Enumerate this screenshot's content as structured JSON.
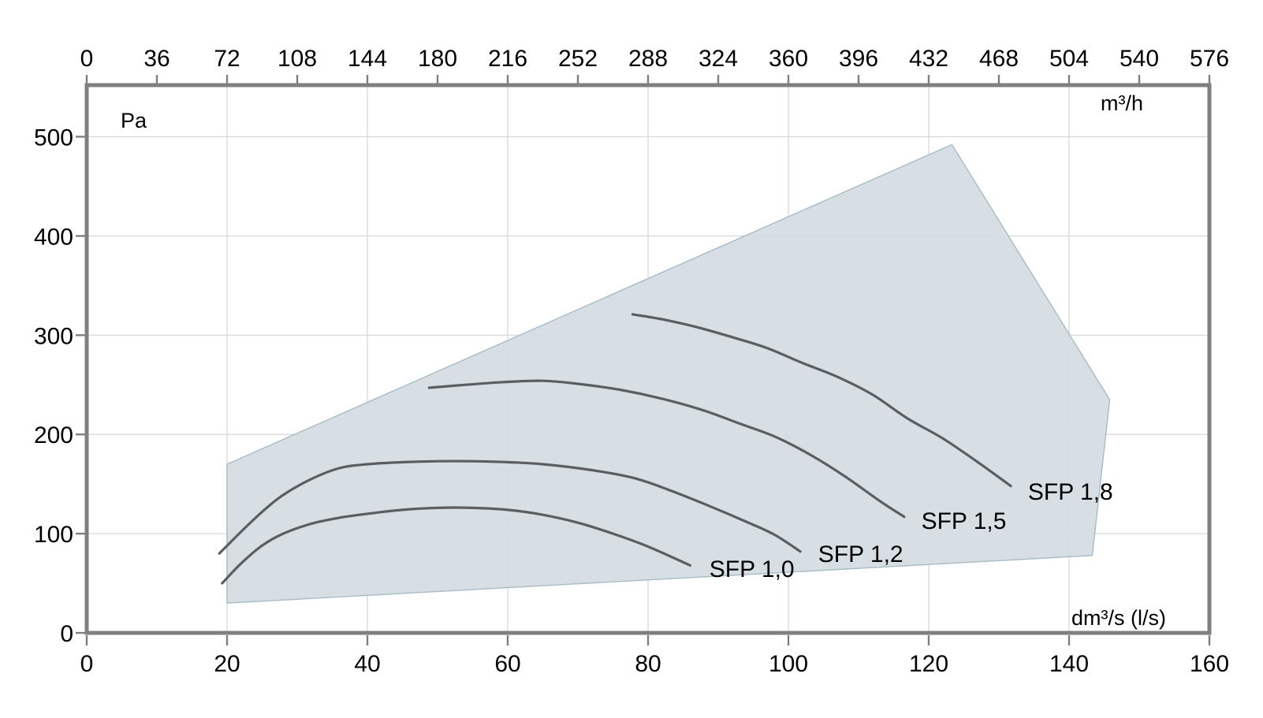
{
  "chart_data": {
    "type": "line",
    "x_axis_top": {
      "unit_label": "m³/h",
      "ticks": [
        0,
        36,
        72,
        108,
        144,
        180,
        216,
        252,
        288,
        324,
        360,
        396,
        432,
        468,
        504,
        540,
        576
      ],
      "range": [
        0,
        576
      ]
    },
    "x_axis_bottom": {
      "unit_label": "dm³/s (l/s)",
      "ticks": [
        0,
        20,
        40,
        60,
        80,
        100,
        120,
        140,
        160
      ],
      "range": [
        0,
        160
      ]
    },
    "y_axis": {
      "unit_label": "Pa",
      "ticks": [
        0,
        100,
        200,
        300,
        400,
        500
      ],
      "range": [
        0,
        552
      ]
    },
    "grid": {
      "show": true,
      "x_every_ls": 20,
      "y_every_pa": 100
    },
    "envelope": {
      "name": "operating-area",
      "points_ls_pa": [
        [
          20,
          170
        ],
        [
          123.3,
          492
        ],
        [
          145.8,
          235
        ],
        [
          143.3,
          78
        ],
        [
          20,
          30
        ]
      ]
    },
    "series": [
      {
        "label": "SFP 1,0",
        "label_pos_ls_pa": [
          94.8,
          56.4
        ],
        "points_ls_pa": [
          [
            19.3,
            50
          ],
          [
            22,
            70
          ],
          [
            25,
            88
          ],
          [
            28,
            100
          ],
          [
            32,
            110
          ],
          [
            36,
            116
          ],
          [
            40,
            120
          ],
          [
            45,
            124
          ],
          [
            50,
            126
          ],
          [
            55,
            126
          ],
          [
            60,
            124
          ],
          [
            65,
            119
          ],
          [
            70,
            111
          ],
          [
            75,
            100
          ],
          [
            80,
            87
          ],
          [
            86,
            68
          ]
        ]
      },
      {
        "label": "SFP 1,2",
        "label_pos_ls_pa": [
          110.3,
          71.5
        ],
        "points_ls_pa": [
          [
            18.9,
            80
          ],
          [
            22,
            102
          ],
          [
            25,
            122
          ],
          [
            28,
            139
          ],
          [
            32,
            155
          ],
          [
            36,
            166
          ],
          [
            40,
            170
          ],
          [
            45,
            172
          ],
          [
            50,
            173
          ],
          [
            55,
            173
          ],
          [
            60,
            172
          ],
          [
            65,
            170
          ],
          [
            72,
            164
          ],
          [
            78,
            156
          ],
          [
            83,
            144
          ],
          [
            88,
            130
          ],
          [
            94,
            112
          ],
          [
            98,
            99
          ],
          [
            101.7,
            82
          ]
        ]
      },
      {
        "label": "SFP 1,5",
        "label_pos_ls_pa": [
          125.0,
          104.8
        ],
        "points_ls_pa": [
          [
            48.8,
            247
          ],
          [
            54,
            250
          ],
          [
            60,
            253
          ],
          [
            65,
            254
          ],
          [
            70,
            251
          ],
          [
            76,
            245
          ],
          [
            82,
            236
          ],
          [
            88,
            224
          ],
          [
            93,
            211
          ],
          [
            98,
            198
          ],
          [
            103,
            180
          ],
          [
            108,
            158
          ],
          [
            113,
            133
          ],
          [
            116.5,
            117
          ]
        ]
      },
      {
        "label": "SFP 1,8",
        "label_pos_ls_pa": [
          140.2,
          134.2
        ],
        "points_ls_pa": [
          [
            77.8,
            321
          ],
          [
            82,
            316
          ],
          [
            87,
            308
          ],
          [
            92,
            298
          ],
          [
            97,
            287
          ],
          [
            102,
            272
          ],
          [
            107,
            258
          ],
          [
            112,
            240
          ],
          [
            117,
            216
          ],
          [
            122,
            196
          ],
          [
            127,
            172
          ],
          [
            131.7,
            148
          ]
        ]
      }
    ],
    "colors": {
      "envelope_fill": "#d5dce2",
      "envelope_stroke": "#a6bbc6",
      "curve": "#5a5e60",
      "frame": "#7f7f7f",
      "grid": "#d9d9d9",
      "tick": "#7f7f7f",
      "text": "#000000"
    }
  }
}
